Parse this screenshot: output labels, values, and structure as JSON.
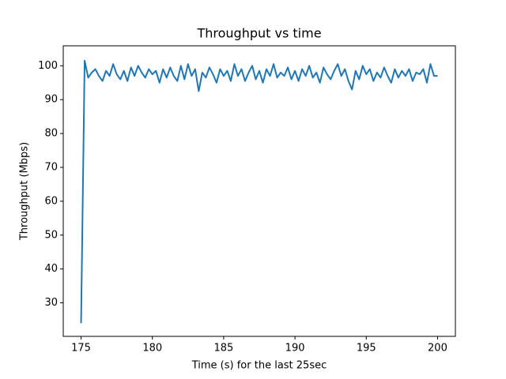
{
  "chart_data": {
    "type": "line",
    "title": "Throughput vs time",
    "xlabel": "Time (s) for the last 25sec",
    "ylabel": "Throughput (Mbps)",
    "x": [
      175,
      175.25,
      175.5,
      175.75,
      176,
      176.25,
      176.5,
      176.75,
      177,
      177.25,
      177.5,
      177.75,
      178,
      178.25,
      178.5,
      178.75,
      179,
      179.25,
      179.5,
      179.75,
      180,
      180.25,
      180.5,
      180.75,
      181,
      181.25,
      181.5,
      181.75,
      182,
      182.25,
      182.5,
      182.75,
      183,
      183.25,
      183.5,
      183.75,
      184,
      184.25,
      184.5,
      184.75,
      185,
      185.25,
      185.5,
      185.75,
      186,
      186.25,
      186.5,
      186.75,
      187,
      187.25,
      187.5,
      187.75,
      188,
      188.25,
      188.5,
      188.75,
      189,
      189.25,
      189.5,
      189.75,
      190,
      190.25,
      190.5,
      190.75,
      191,
      191.25,
      191.5,
      191.75,
      192,
      192.25,
      192.5,
      192.75,
      193,
      193.25,
      193.5,
      193.75,
      194,
      194.25,
      194.5,
      194.75,
      195,
      195.25,
      195.5,
      195.75,
      196,
      196.25,
      196.5,
      196.75,
      197,
      197.25,
      197.5,
      197.75,
      198,
      198.25,
      198.5,
      198.75,
      199,
      199.25,
      199.5,
      199.75,
      200
    ],
    "series": [
      {
        "name": "throughput",
        "color": "#1f77b4",
        "values": [
          24,
          101.5,
          96.5,
          98,
          99,
          97,
          95.5,
          98.5,
          97,
          100.5,
          97.5,
          96,
          98.5,
          95.5,
          99.5,
          97,
          100,
          98,
          96.5,
          99,
          97.5,
          98.5,
          95,
          99,
          96.5,
          99.5,
          97,
          95.5,
          100,
          96,
          100.5,
          97,
          99,
          92.5,
          98,
          96.5,
          99.5,
          97.5,
          95,
          99,
          97,
          98.5,
          95.5,
          100.5,
          97,
          99,
          95.5,
          98,
          100,
          96,
          98.5,
          95,
          99,
          97,
          100.5,
          96.5,
          98,
          97,
          99.5,
          96,
          98.5,
          95.5,
          99,
          97,
          100,
          96.5,
          98,
          95,
          99.5,
          97.5,
          96,
          98.5,
          100.5,
          97,
          99,
          95.5,
          93,
          98.5,
          96,
          100,
          97.5,
          99,
          95.5,
          98,
          96.5,
          99.5,
          97,
          95,
          99,
          96.5,
          98.5,
          97,
          99,
          95.5,
          98,
          97.5,
          99,
          95,
          100.5,
          97,
          97
        ]
      }
    ],
    "xlim": [
      173.75,
      201.25
    ],
    "ylim": [
      20.1,
      105.9
    ],
    "xticks": [
      175,
      180,
      185,
      190,
      195,
      200
    ],
    "yticks": [
      30,
      40,
      50,
      60,
      70,
      80,
      90,
      100
    ]
  }
}
